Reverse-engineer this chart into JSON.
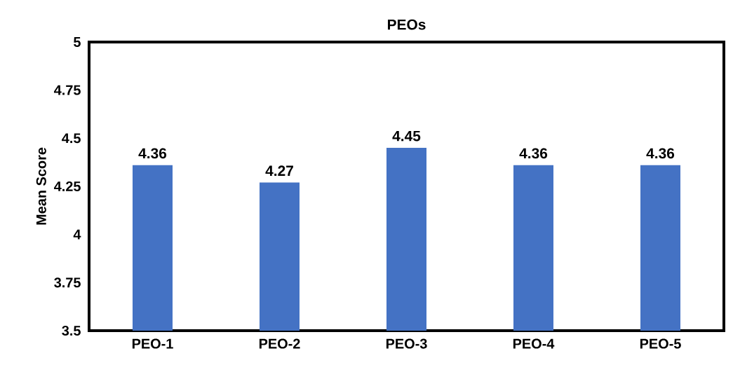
{
  "chart_data": {
    "type": "bar",
    "title": "PEOs",
    "ylabel": "Mean Score",
    "categories": [
      "PEO-1",
      "PEO-2",
      "PEO-3",
      "PEO-4",
      "PEO-5"
    ],
    "values": [
      4.36,
      4.27,
      4.45,
      4.36,
      4.36
    ],
    "color": "#4472c4",
    "ylim": [
      3.5,
      5
    ],
    "yticks": [
      3.5,
      3.75,
      4,
      4.25,
      4.5,
      4.75,
      5
    ],
    "data_labels": true,
    "grid": false
  }
}
